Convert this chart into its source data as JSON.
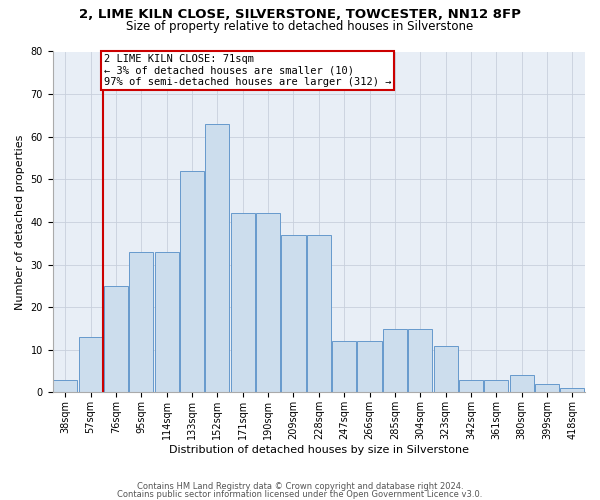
{
  "title1": "2, LIME KILN CLOSE, SILVERSTONE, TOWCESTER, NN12 8FP",
  "title2": "Size of property relative to detached houses in Silverstone",
  "xlabel": "Distribution of detached houses by size in Silverstone",
  "ylabel": "Number of detached properties",
  "bar_labels": [
    "38sqm",
    "57sqm",
    "76sqm",
    "95sqm",
    "114sqm",
    "133sqm",
    "152sqm",
    "171sqm",
    "190sqm",
    "209sqm",
    "228sqm",
    "247sqm",
    "266sqm",
    "285sqm",
    "304sqm",
    "323sqm",
    "342sqm",
    "361sqm",
    "380sqm",
    "399sqm",
    "418sqm"
  ],
  "bar_heights": [
    3,
    13,
    25,
    33,
    33,
    52,
    63,
    42,
    42,
    37,
    37,
    12,
    12,
    15,
    15,
    11,
    3,
    3,
    4,
    2,
    1
  ],
  "bar_color": "#ccdded",
  "bar_edgecolor": "#6699cc",
  "vline_pos": 2.0,
  "vline_color": "#cc0000",
  "annotation_line1": "2 LIME KILN CLOSE: 71sqm",
  "annotation_line2": "← 3% of detached houses are smaller (10)",
  "annotation_line3": "97% of semi-detached houses are larger (312) →",
  "annotation_box_edgecolor": "#cc0000",
  "ylim": [
    0,
    80
  ],
  "yticks": [
    0,
    10,
    20,
    30,
    40,
    50,
    60,
    70,
    80
  ],
  "grid_color": "#c8d0dc",
  "bg_color": "#e8eef6",
  "footer1": "Contains HM Land Registry data © Crown copyright and database right 2024.",
  "footer2": "Contains public sector information licensed under the Open Government Licence v3.0.",
  "title1_fontsize": 9.5,
  "title2_fontsize": 8.5,
  "xlabel_fontsize": 8.0,
  "ylabel_fontsize": 8.0,
  "tick_fontsize": 7.0,
  "annot_fontsize": 7.5,
  "footer_fontsize": 6.0
}
